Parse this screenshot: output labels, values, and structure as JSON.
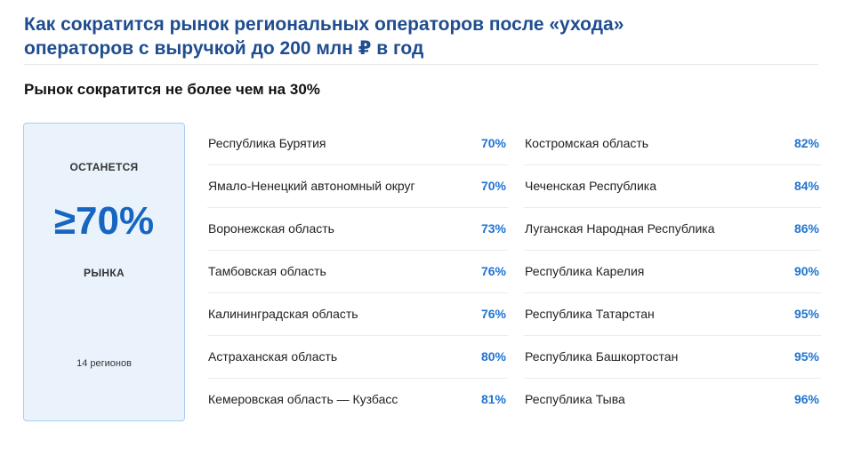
{
  "title": {
    "line1": "Как сократится рынок региональных операторов после «ухода»",
    "line2": "операторов с выручкой до 200 млн ₽ в год"
  },
  "subtitle": "Рынок сократится не более чем на 30%",
  "summary": {
    "label_top": "ОСТАНЕТСЯ",
    "big_value": "≥70%",
    "label_bottom": "РЫНКА",
    "note": "14 регионов"
  },
  "regions_left": [
    {
      "name": "Республика Бурятия",
      "value": "70%"
    },
    {
      "name": "Ямало-Ненецкий автономный округ",
      "value": "70%"
    },
    {
      "name": "Воронежская область",
      "value": "73%"
    },
    {
      "name": "Тамбовская область",
      "value": "76%"
    },
    {
      "name": "Калининградская область",
      "value": "76%"
    },
    {
      "name": "Астраханская область",
      "value": "80%"
    },
    {
      "name": "Кемеровская область — Кузбасс",
      "value": "81%"
    }
  ],
  "regions_right": [
    {
      "name": "Костромская область",
      "value": "82%"
    },
    {
      "name": "Чеченская Республика",
      "value": "84%"
    },
    {
      "name": "Луганская Народная Республика",
      "value": "86%"
    },
    {
      "name": "Республика Карелия",
      "value": "90%"
    },
    {
      "name": "Республика Татарстан",
      "value": "95%"
    },
    {
      "name": "Республика Башкортостан",
      "value": "95%"
    },
    {
      "name": "Республика Тыва",
      "value": "96%"
    }
  ],
  "colors": {
    "title": "#1f4d8f",
    "accent": "#1665c0",
    "value": "#1f74d0",
    "card_bg": "#eaf3fc",
    "card_border": "#a9cdef"
  }
}
